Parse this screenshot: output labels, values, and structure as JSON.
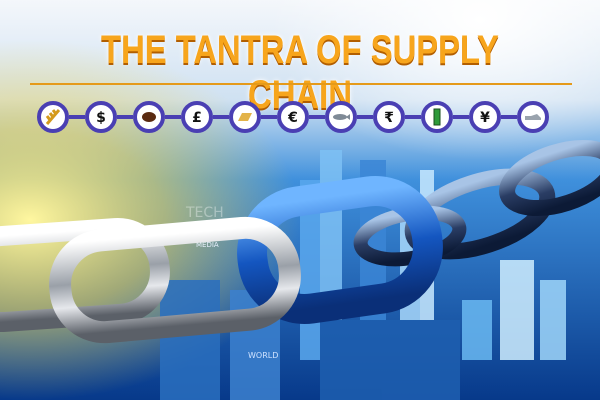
{
  "title": "THE TANTRA OF SUPPLY CHAIN",
  "strip_symbols": [
    {
      "name": "wheat-icon",
      "glyph": ""
    },
    {
      "name": "dollar-icon",
      "glyph": "$"
    },
    {
      "name": "coffee-bean-icon",
      "glyph": ""
    },
    {
      "name": "pound-icon",
      "glyph": "£"
    },
    {
      "name": "gold-bar-icon",
      "glyph": ""
    },
    {
      "name": "euro-icon",
      "glyph": "€"
    },
    {
      "name": "fish-icon",
      "glyph": ""
    },
    {
      "name": "rupee-icon",
      "glyph": "₹"
    },
    {
      "name": "battery-icon",
      "glyph": ""
    },
    {
      "name": "yen-icon",
      "glyph": "¥"
    },
    {
      "name": "shoe-icon",
      "glyph": ""
    }
  ],
  "background_words": [
    "WORLD",
    "MEDIA",
    "TECH"
  ],
  "colors": {
    "title": "#f7a51c",
    "ring": "#4a3fb3",
    "sky_top": "#2c7fd6",
    "sky_bottom": "#083a8a",
    "blue_link": "#1a63c8",
    "chrome_link": "#c9ccd2"
  }
}
